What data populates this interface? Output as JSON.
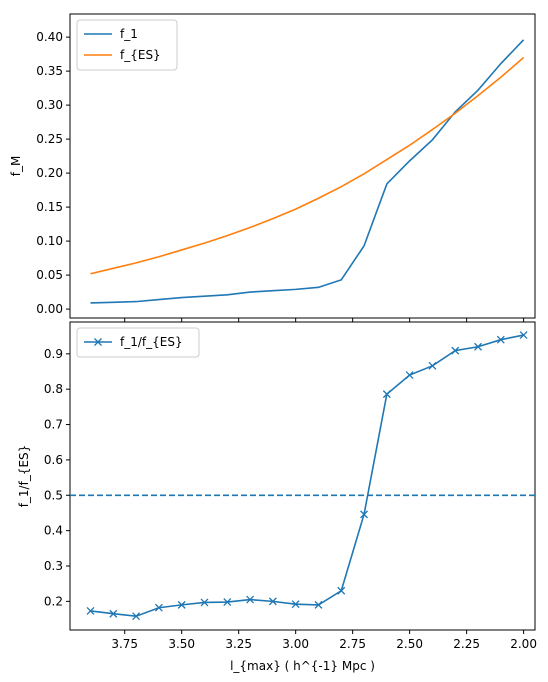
{
  "chart_data": [
    {
      "type": "line",
      "title": "",
      "xlabel": "",
      "ylabel": "f_M",
      "xlim": [
        3.99,
        1.95
      ],
      "ylim": [
        -0.0131,
        0.434
      ],
      "x_inverted": true,
      "yticks": [
        0.0,
        0.05,
        0.1,
        0.15,
        0.2,
        0.25,
        0.3,
        0.35,
        0.4
      ],
      "xticks": [
        3.75,
        3.5,
        3.25,
        3.0,
        2.75,
        2.5,
        2.25,
        2.0
      ],
      "legend": "top-left",
      "x": [
        3.9,
        3.8,
        3.7,
        3.6,
        3.5,
        3.4,
        3.3,
        3.2,
        3.1,
        3.0,
        2.9,
        2.8,
        2.7,
        2.6,
        2.5,
        2.4,
        2.3,
        2.2,
        2.1,
        2.0
      ],
      "series": [
        {
          "name": "f_1",
          "color": "#1f77b4",
          "values": [
            0.009,
            0.01,
            0.011,
            0.014,
            0.017,
            0.019,
            0.021,
            0.025,
            0.027,
            0.029,
            0.032,
            0.043,
            0.093,
            0.184,
            0.218,
            0.249,
            0.29,
            0.322,
            0.361,
            0.396
          ]
        },
        {
          "name": "f_{ES}",
          "color": "#ff7f0e",
          "values": [
            0.052,
            0.06,
            0.068,
            0.077,
            0.087,
            0.097,
            0.108,
            0.12,
            0.133,
            0.147,
            0.163,
            0.18,
            0.199,
            0.22,
            0.241,
            0.264,
            0.288,
            0.314,
            0.341,
            0.37
          ]
        }
      ]
    },
    {
      "type": "line",
      "title": "",
      "xlabel": "l_{max} ( h^{-1} Mpc )",
      "ylabel": "f_1/f_{ES}",
      "xlim": [
        3.99,
        1.95
      ],
      "ylim": [
        0.119,
        0.99
      ],
      "x_inverted": true,
      "yticks": [
        0.2,
        0.3,
        0.4,
        0.5,
        0.6,
        0.7,
        0.8,
        0.9
      ],
      "xticks": [
        3.75,
        3.5,
        3.25,
        3.0,
        2.75,
        2.5,
        2.25,
        2.0
      ],
      "xtick_labels": [
        "3.75",
        "3.50",
        "3.25",
        "3.00",
        "2.75",
        "2.50",
        "2.25",
        "2.00"
      ],
      "legend": "top-left",
      "hline": {
        "y": 0.5,
        "style": "dashed",
        "color": "#1f77b4"
      },
      "x": [
        3.9,
        3.8,
        3.7,
        3.6,
        3.5,
        3.4,
        3.3,
        3.2,
        3.1,
        3.0,
        2.9,
        2.8,
        2.7,
        2.6,
        2.5,
        2.4,
        2.3,
        2.2,
        2.1,
        2.0
      ],
      "series": [
        {
          "name": "f_1/f_{ES}",
          "color": "#1f77b4",
          "marker": "x",
          "values": [
            0.173,
            0.165,
            0.158,
            0.182,
            0.19,
            0.197,
            0.198,
            0.205,
            0.2,
            0.192,
            0.19,
            0.23,
            0.446,
            0.786,
            0.84,
            0.866,
            0.909,
            0.92,
            0.94,
            0.953
          ]
        }
      ]
    }
  ]
}
